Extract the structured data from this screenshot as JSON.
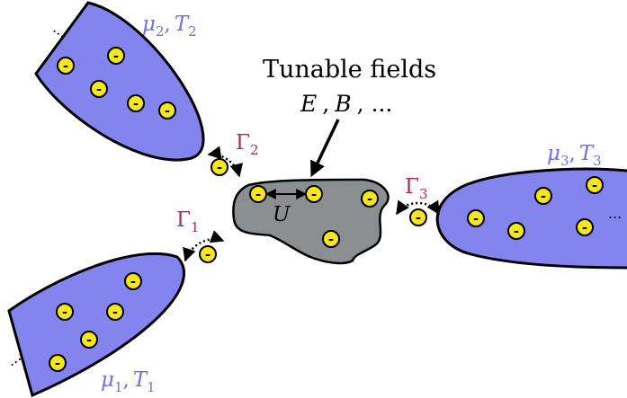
{
  "leads": {
    "top_left": {
      "mu": "μ",
      "mu_sub": "2",
      "sep": ",",
      "T": "T",
      "T_sub": "2",
      "dots": "..."
    },
    "bottom_left": {
      "mu": "μ",
      "mu_sub": "1",
      "sep": ",",
      "T": "T",
      "T_sub": "1",
      "dots": "..."
    },
    "right": {
      "mu": "μ",
      "mu_sub": "3",
      "sep": ",",
      "T": "T",
      "T_sub": "3",
      "dots": "..."
    }
  },
  "rates": {
    "gamma_1": {
      "symbol": "Γ",
      "sub": "1"
    },
    "gamma_2": {
      "symbol": "Γ",
      "sub": "2"
    },
    "gamma_3": {
      "symbol": "Γ",
      "sub": "3"
    }
  },
  "fields": {
    "title": "Tunable fields",
    "E": "E",
    "comma1": ",",
    "B": "B",
    "comma2": ",",
    "ellipsis": "..."
  },
  "interaction": {
    "label": "U"
  },
  "electron": {
    "symbol": "-"
  },
  "colors": {
    "lead_fill": "#8484ee",
    "lead_label": "#6f6fe6",
    "rate_label": "#b5294f",
    "dot_fill": "#f6e61c",
    "dot_border": "#7a6a00",
    "outline": "#000000",
    "dot_shape": "#8a8e90"
  }
}
